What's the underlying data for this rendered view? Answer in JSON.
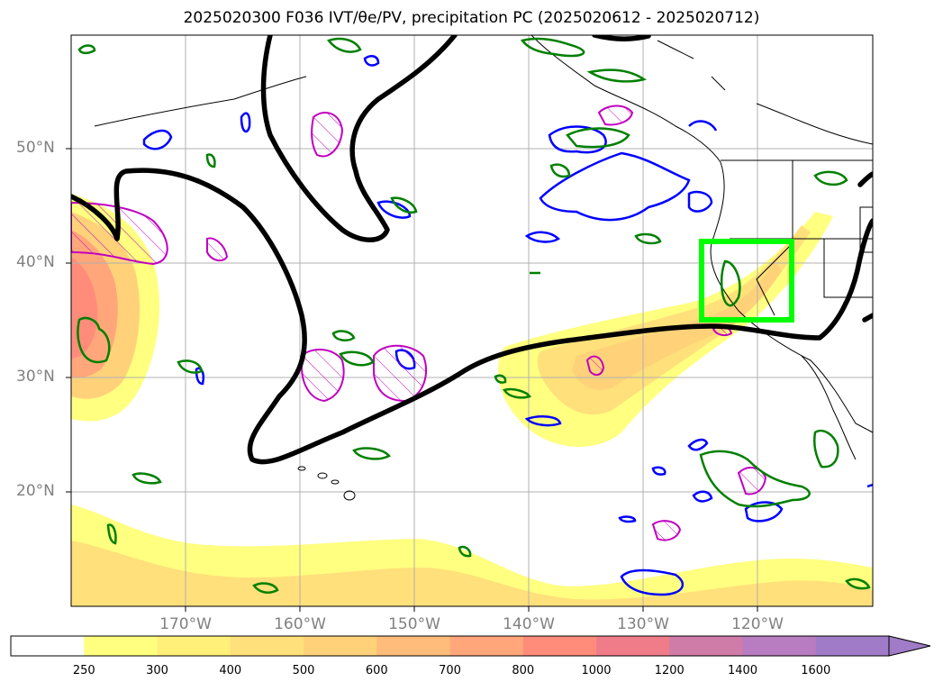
{
  "title": "2025020300 F036 IVT/θe/PV, precipitation PC (2025020612 - 2025020712)",
  "lat_labels": [
    "50°N",
    "40°N",
    "30°N",
    "20°N"
  ],
  "lat_values": [
    50,
    40,
    30,
    20
  ],
  "lon_labels": [
    "170°W",
    "160°W",
    "150°W",
    "140°W",
    "130°W",
    "120°W"
  ],
  "lon_values": [
    -170,
    -160,
    -150,
    -140,
    -130,
    -120
  ],
  "colorbar": {
    "levels": [
      "250",
      "300",
      "400",
      "500",
      "600",
      "700",
      "800",
      "1000",
      "1200",
      "1400",
      "1600"
    ],
    "colors": [
      "#ffffff",
      "#ffff80",
      "#fff07a",
      "#ffe07a",
      "#ffd27a",
      "#ffbc7a",
      "#ffa67a",
      "#ff8c7a",
      "#f07c8a",
      "#d07ca8",
      "#b87cc0",
      "#a07cc8"
    ],
    "extend": "max"
  },
  "target_box_color": "#00ff00",
  "colors": {
    "black_contour": "#000000",
    "blue_contour": "#0000ff",
    "magenta_contour": "#c000c0",
    "green_contour": "#008000"
  }
}
